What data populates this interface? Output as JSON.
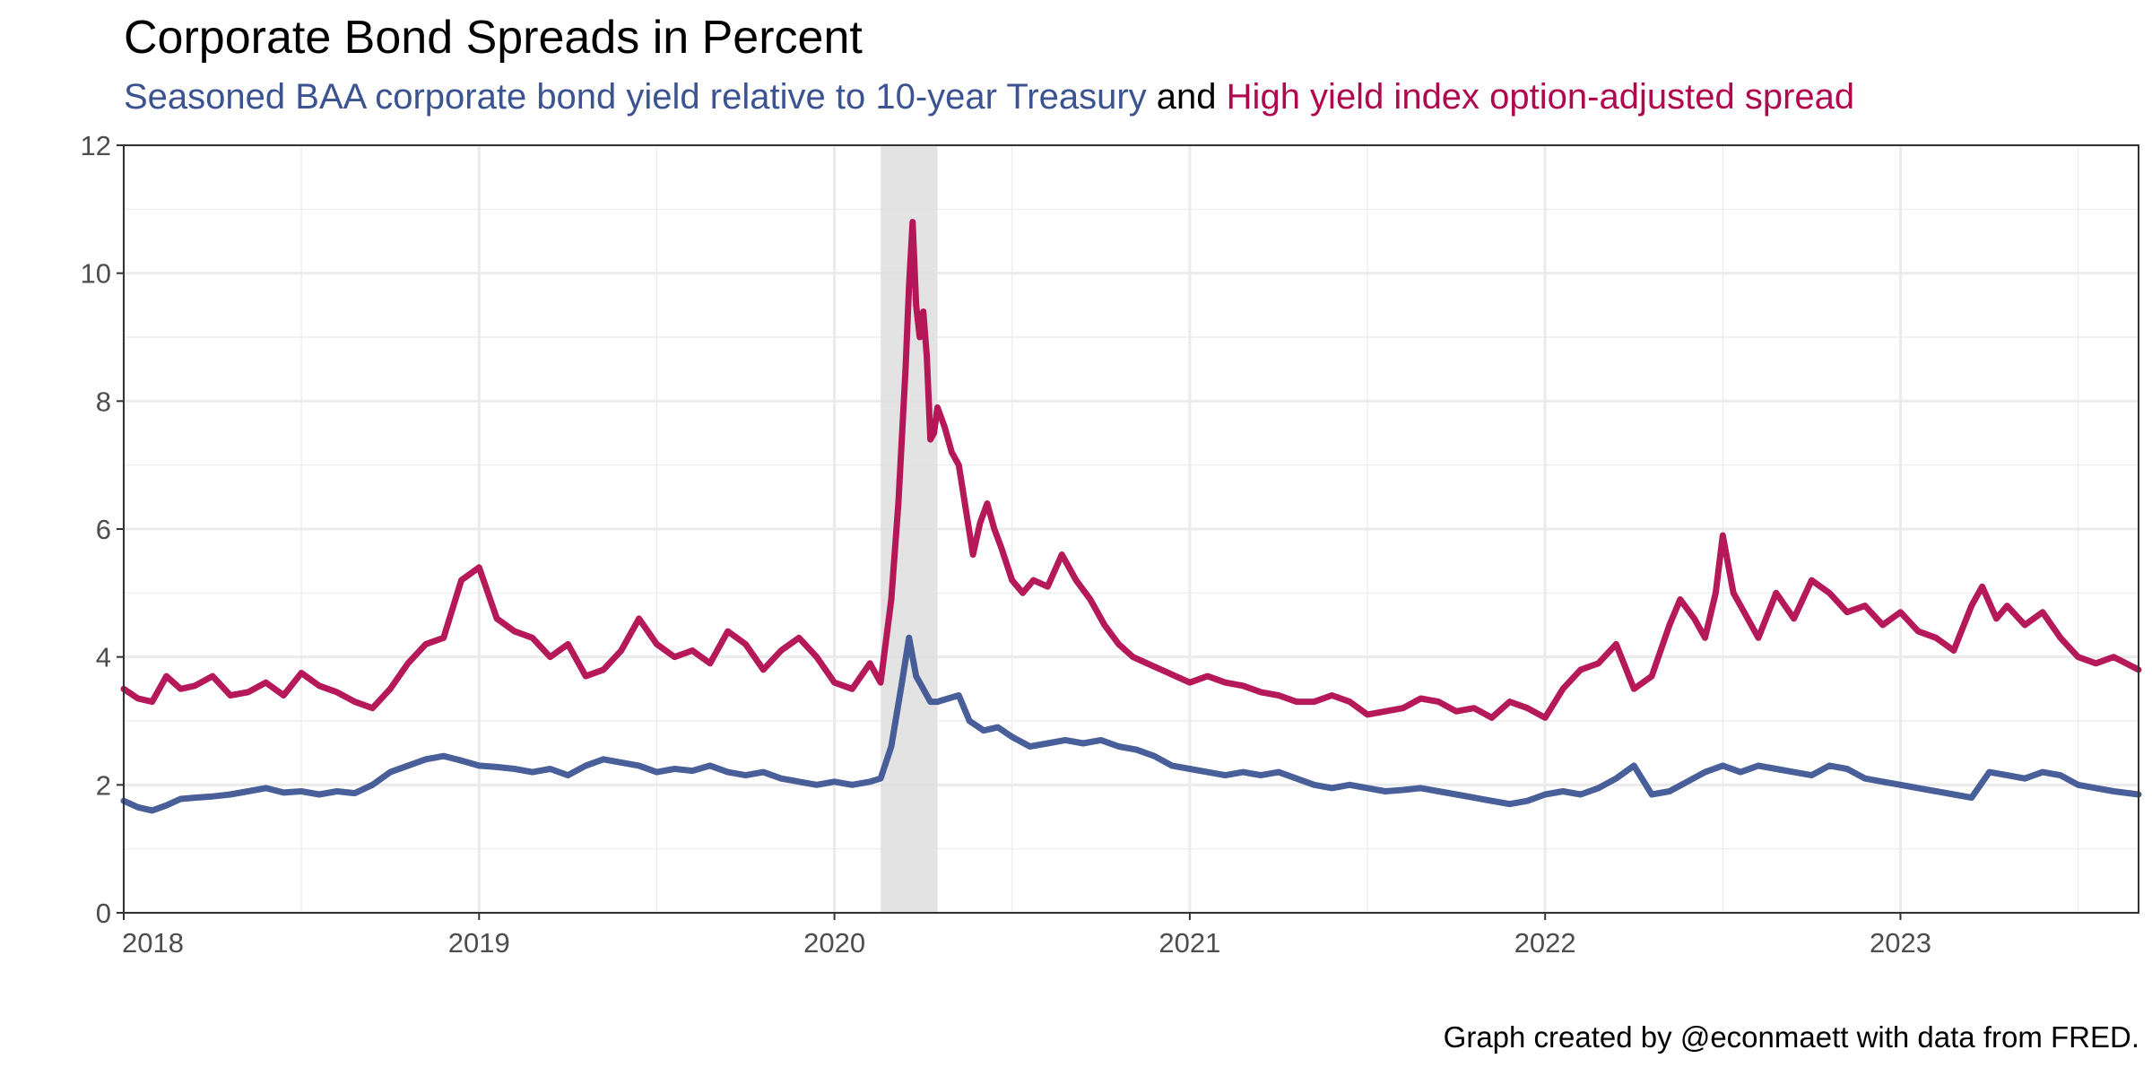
{
  "colors": {
    "baa": "#3b5391",
    "hy": "#b0084e",
    "recession": "#dedede",
    "grid": "#ebebeb",
    "text": "#000000",
    "axis_text": "#4d4d4d"
  },
  "chart_data": {
    "type": "line",
    "title": "Corporate Bond Spreads in Percent",
    "subtitle": {
      "baa_label": "Seasoned BAA corporate bond yield relative to 10-year Treasury",
      "connector": "and",
      "hy_label": "High yield index option-adjusted spread"
    },
    "caption": "Graph created by @econmaett with data from FRED.",
    "xlabel": "",
    "ylabel": "",
    "xlim": [
      2018.0,
      2023.67
    ],
    "ylim": [
      0,
      12
    ],
    "x_ticks": [
      2018,
      2019,
      2020,
      2021,
      2022,
      2023
    ],
    "x_tick_labels": [
      "2018",
      "2019",
      "2020",
      "2021",
      "2022",
      "2023"
    ],
    "y_ticks": [
      0,
      2,
      4,
      6,
      8,
      10,
      12
    ],
    "y_tick_labels": [
      "0",
      "2",
      "4",
      "6",
      "8",
      "10",
      "12"
    ],
    "recession_shading": {
      "start": 2020.13,
      "end": 2020.29
    },
    "grid": true,
    "legend": "none",
    "series": [
      {
        "key": "baa",
        "x": [
          2018.0,
          2018.04,
          2018.08,
          2018.12,
          2018.16,
          2018.2,
          2018.25,
          2018.3,
          2018.35,
          2018.4,
          2018.45,
          2018.5,
          2018.55,
          2018.6,
          2018.65,
          2018.7,
          2018.75,
          2018.8,
          2018.85,
          2018.9,
          2018.95,
          2019.0,
          2019.05,
          2019.1,
          2019.15,
          2019.2,
          2019.25,
          2019.3,
          2019.35,
          2019.4,
          2019.45,
          2019.5,
          2019.55,
          2019.6,
          2019.65,
          2019.7,
          2019.75,
          2019.8,
          2019.85,
          2019.9,
          2019.95,
          2020.0,
          2020.05,
          2020.1,
          2020.13,
          2020.16,
          2020.19,
          2020.21,
          2020.23,
          2020.25,
          2020.27,
          2020.29,
          2020.32,
          2020.35,
          2020.38,
          2020.42,
          2020.46,
          2020.5,
          2020.55,
          2020.6,
          2020.65,
          2020.7,
          2020.75,
          2020.8,
          2020.85,
          2020.9,
          2020.95,
          2021.0,
          2021.05,
          2021.1,
          2021.15,
          2021.2,
          2021.25,
          2021.3,
          2021.35,
          2021.4,
          2021.45,
          2021.5,
          2021.55,
          2021.6,
          2021.65,
          2021.7,
          2021.75,
          2021.8,
          2021.85,
          2021.9,
          2021.95,
          2022.0,
          2022.05,
          2022.1,
          2022.15,
          2022.2,
          2022.25,
          2022.3,
          2022.35,
          2022.4,
          2022.45,
          2022.5,
          2022.55,
          2022.6,
          2022.65,
          2022.7,
          2022.75,
          2022.8,
          2022.85,
          2022.9,
          2022.95,
          2023.0,
          2023.05,
          2023.1,
          2023.15,
          2023.2,
          2023.25,
          2023.3,
          2023.35,
          2023.4,
          2023.45,
          2023.5,
          2023.55,
          2023.6,
          2023.67
        ],
        "y": [
          1.75,
          1.65,
          1.6,
          1.68,
          1.78,
          1.8,
          1.82,
          1.85,
          1.9,
          1.95,
          1.88,
          1.9,
          1.85,
          1.9,
          1.87,
          2.0,
          2.2,
          2.3,
          2.4,
          2.45,
          2.38,
          2.3,
          2.28,
          2.25,
          2.2,
          2.25,
          2.15,
          2.3,
          2.4,
          2.35,
          2.3,
          2.2,
          2.25,
          2.22,
          2.3,
          2.2,
          2.15,
          2.2,
          2.1,
          2.05,
          2.0,
          2.05,
          2.0,
          2.05,
          2.1,
          2.6,
          3.6,
          4.3,
          3.7,
          3.5,
          3.3,
          3.3,
          3.35,
          3.4,
          3.0,
          2.85,
          2.9,
          2.75,
          2.6,
          2.65,
          2.7,
          2.65,
          2.7,
          2.6,
          2.55,
          2.45,
          2.3,
          2.25,
          2.2,
          2.15,
          2.2,
          2.15,
          2.2,
          2.1,
          2.0,
          1.95,
          2.0,
          1.95,
          1.9,
          1.92,
          1.95,
          1.9,
          1.85,
          1.8,
          1.75,
          1.7,
          1.75,
          1.85,
          1.9,
          1.85,
          1.95,
          2.1,
          2.3,
          1.85,
          1.9,
          2.05,
          2.2,
          2.3,
          2.2,
          2.3,
          2.25,
          2.2,
          2.15,
          2.3,
          2.25,
          2.1,
          2.05,
          2.0,
          1.95,
          1.9,
          1.85,
          1.8,
          2.2,
          2.15,
          2.1,
          2.2,
          2.15,
          2.0,
          1.95,
          1.9,
          1.85
        ],
        "color_key": "baa"
      },
      {
        "key": "hy",
        "x": [
          2018.0,
          2018.04,
          2018.08,
          2018.12,
          2018.16,
          2018.2,
          2018.25,
          2018.3,
          2018.35,
          2018.4,
          2018.45,
          2018.5,
          2018.55,
          2018.6,
          2018.65,
          2018.7,
          2018.75,
          2018.8,
          2018.85,
          2018.9,
          2018.95,
          2019.0,
          2019.05,
          2019.1,
          2019.15,
          2019.2,
          2019.25,
          2019.3,
          2019.35,
          2019.4,
          2019.45,
          2019.5,
          2019.55,
          2019.6,
          2019.65,
          2019.7,
          2019.75,
          2019.8,
          2019.85,
          2019.9,
          2019.95,
          2020.0,
          2020.05,
          2020.1,
          2020.13,
          2020.16,
          2020.18,
          2020.2,
          2020.21,
          2020.22,
          2020.23,
          2020.24,
          2020.25,
          2020.26,
          2020.27,
          2020.28,
          2020.29,
          2020.31,
          2020.33,
          2020.35,
          2020.37,
          2020.39,
          2020.41,
          2020.43,
          2020.45,
          2020.47,
          2020.5,
          2020.53,
          2020.56,
          2020.6,
          2020.64,
          2020.68,
          2020.72,
          2020.76,
          2020.8,
          2020.84,
          2020.88,
          2020.92,
          2020.96,
          2021.0,
          2021.05,
          2021.1,
          2021.15,
          2021.2,
          2021.25,
          2021.3,
          2021.35,
          2021.4,
          2021.45,
          2021.5,
          2021.55,
          2021.6,
          2021.65,
          2021.7,
          2021.75,
          2021.8,
          2021.85,
          2021.9,
          2021.95,
          2022.0,
          2022.05,
          2022.1,
          2022.15,
          2022.2,
          2022.25,
          2022.3,
          2022.35,
          2022.38,
          2022.42,
          2022.45,
          2022.48,
          2022.5,
          2022.53,
          2022.56,
          2022.6,
          2022.65,
          2022.7,
          2022.75,
          2022.8,
          2022.85,
          2022.9,
          2022.95,
          2023.0,
          2023.05,
          2023.1,
          2023.15,
          2023.2,
          2023.23,
          2023.27,
          2023.3,
          2023.35,
          2023.4,
          2023.45,
          2023.5,
          2023.55,
          2023.6,
          2023.67
        ],
        "y": [
          3.5,
          3.35,
          3.3,
          3.7,
          3.5,
          3.55,
          3.7,
          3.4,
          3.45,
          3.6,
          3.4,
          3.75,
          3.55,
          3.45,
          3.3,
          3.2,
          3.5,
          3.9,
          4.2,
          4.3,
          5.2,
          5.4,
          4.6,
          4.4,
          4.3,
          4.0,
          4.2,
          3.7,
          3.8,
          4.1,
          4.6,
          4.2,
          4.0,
          4.1,
          3.9,
          4.4,
          4.2,
          3.8,
          4.1,
          4.3,
          4.0,
          3.6,
          3.5,
          3.9,
          3.6,
          4.9,
          6.4,
          8.5,
          9.8,
          10.8,
          9.5,
          9.0,
          9.4,
          8.7,
          7.4,
          7.5,
          7.9,
          7.6,
          7.2,
          7.0,
          6.3,
          5.6,
          6.1,
          6.4,
          6.0,
          5.7,
          5.2,
          5.0,
          5.2,
          5.1,
          5.6,
          5.2,
          4.9,
          4.5,
          4.2,
          4.0,
          3.9,
          3.8,
          3.7,
          3.6,
          3.7,
          3.6,
          3.55,
          3.45,
          3.4,
          3.3,
          3.3,
          3.4,
          3.3,
          3.1,
          3.15,
          3.2,
          3.35,
          3.3,
          3.15,
          3.2,
          3.05,
          3.3,
          3.2,
          3.05,
          3.5,
          3.8,
          3.9,
          4.2,
          3.5,
          3.7,
          4.5,
          4.9,
          4.6,
          4.3,
          5.0,
          5.9,
          5.0,
          4.7,
          4.3,
          5.0,
          4.6,
          5.2,
          5.0,
          4.7,
          4.8,
          4.5,
          4.7,
          4.4,
          4.3,
          4.1,
          4.8,
          5.1,
          4.6,
          4.8,
          4.5,
          4.7,
          4.3,
          4.0,
          3.9,
          4.0,
          3.8
        ],
        "color_key": "hy"
      }
    ]
  }
}
